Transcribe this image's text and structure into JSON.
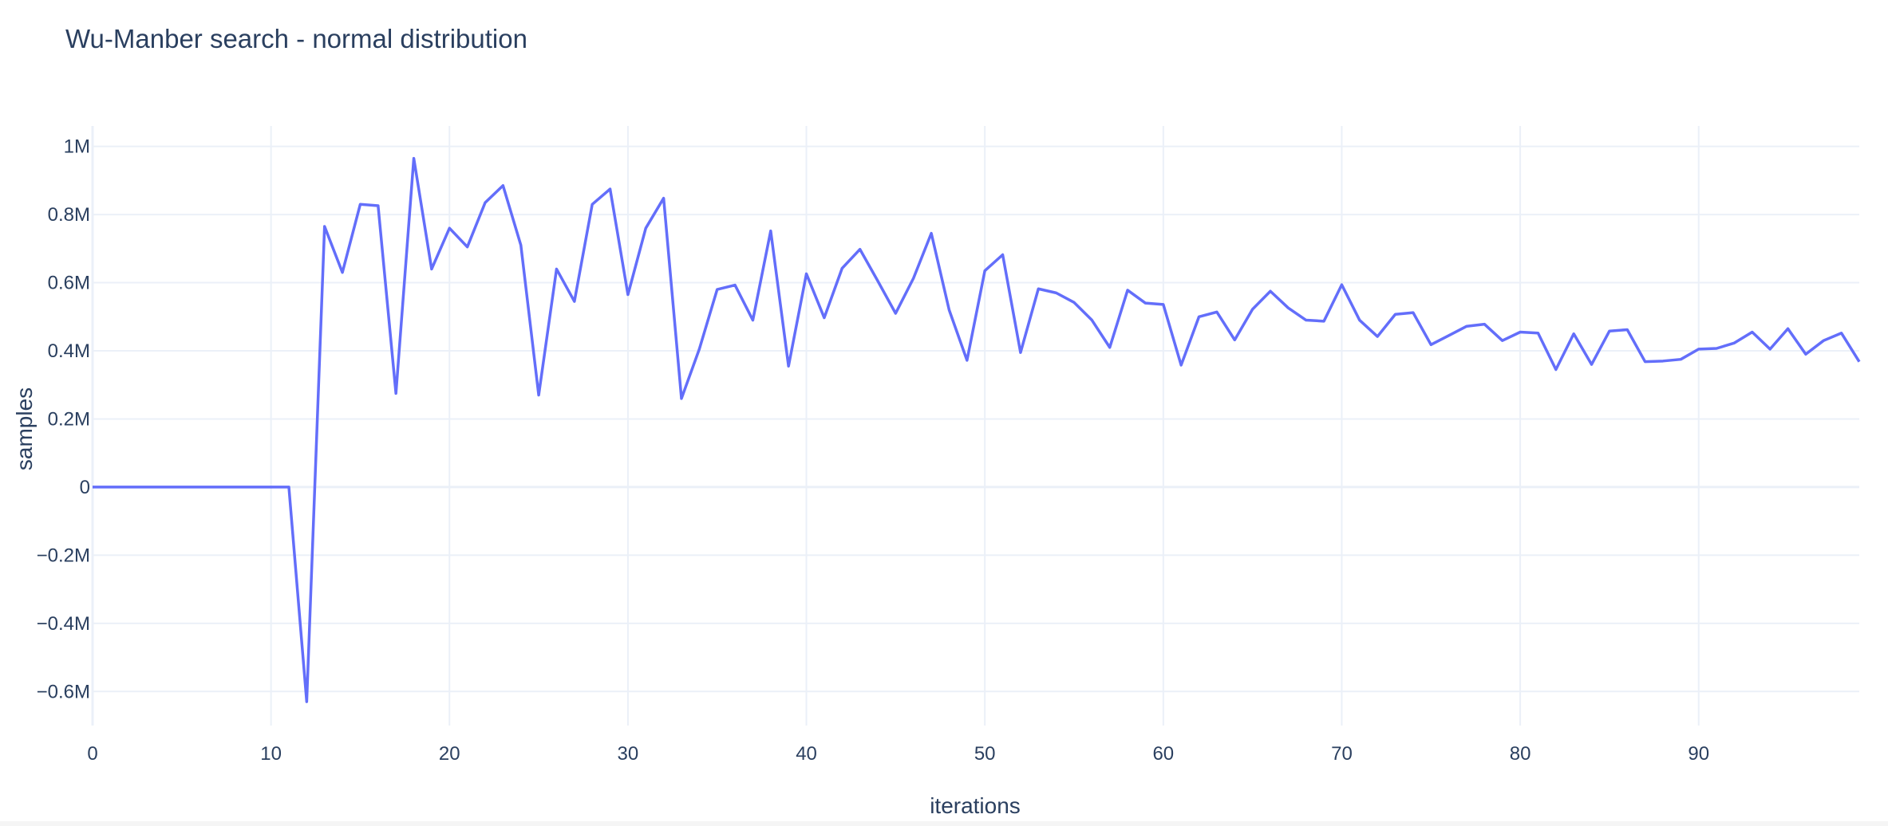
{
  "chart_data": {
    "type": "line",
    "title": "Wu-Manber search - normal distribution",
    "xlabel": "iterations",
    "ylabel": "samples",
    "xlim": [
      0,
      99
    ],
    "ylim": [
      -700000,
      1060000
    ],
    "x_ticks": [
      0,
      10,
      20,
      30,
      40,
      50,
      60,
      70,
      80,
      90
    ],
    "x_tick_labels": [
      "0",
      "10",
      "20",
      "30",
      "40",
      "50",
      "60",
      "70",
      "80",
      "90"
    ],
    "y_ticks": [
      -600000,
      -400000,
      -200000,
      0,
      200000,
      400000,
      600000,
      800000,
      1000000
    ],
    "y_tick_labels": [
      "−0.6M",
      "−0.4M",
      "−0.2M",
      "0",
      "0.2M",
      "0.4M",
      "0.6M",
      "0.8M",
      "1M"
    ],
    "grid": true,
    "series": [
      {
        "color": "#636efa",
        "x": [
          0,
          1,
          2,
          3,
          4,
          5,
          6,
          7,
          8,
          9,
          10,
          11,
          12,
          13,
          14,
          15,
          16,
          17,
          18,
          19,
          20,
          21,
          22,
          23,
          24,
          25,
          26,
          27,
          28,
          29,
          30,
          31,
          32,
          33,
          34,
          35,
          36,
          37,
          38,
          39,
          40,
          41,
          42,
          43,
          44,
          45,
          46,
          47,
          48,
          49,
          50,
          51,
          52,
          53,
          54,
          55,
          56,
          57,
          58,
          59,
          60,
          61,
          62,
          63,
          64,
          65,
          66,
          67,
          68,
          69,
          70,
          71,
          72,
          73,
          74,
          75,
          76,
          77,
          78,
          79,
          80,
          81,
          82,
          83,
          84,
          85,
          86,
          87,
          88,
          89,
          90,
          91,
          92,
          93,
          94,
          95,
          96,
          97,
          98,
          99
        ],
        "values": [
          0,
          0,
          0,
          0,
          0,
          0,
          0,
          0,
          0,
          0,
          0,
          0,
          -630000,
          765000,
          630000,
          830000,
          826000,
          275000,
          965000,
          640000,
          760000,
          705000,
          835000,
          885000,
          710000,
          270000,
          640000,
          545000,
          830000,
          875000,
          565000,
          760000,
          848000,
          260000,
          405000,
          580000,
          593000,
          490000,
          752000,
          355000,
          626000,
          497000,
          642000,
          698000,
          605000,
          510000,
          613000,
          745000,
          520000,
          372000,
          635000,
          682000,
          395000,
          582000,
          570000,
          542000,
          490000,
          410000,
          578000,
          540000,
          536000,
          358000,
          500000,
          514000,
          432000,
          522000,
          575000,
          526000,
          490000,
          487000,
          594000,
          490000,
          442000,
          507000,
          512000,
          418000,
          445000,
          472000,
          478000,
          430000,
          455000,
          452000,
          345000,
          450000,
          360000,
          458000,
          462000,
          368000,
          370000,
          375000,
          405000,
          407000,
          423000,
          455000,
          405000,
          465000,
          390000,
          430000,
          452000,
          368000
        ]
      }
    ]
  }
}
